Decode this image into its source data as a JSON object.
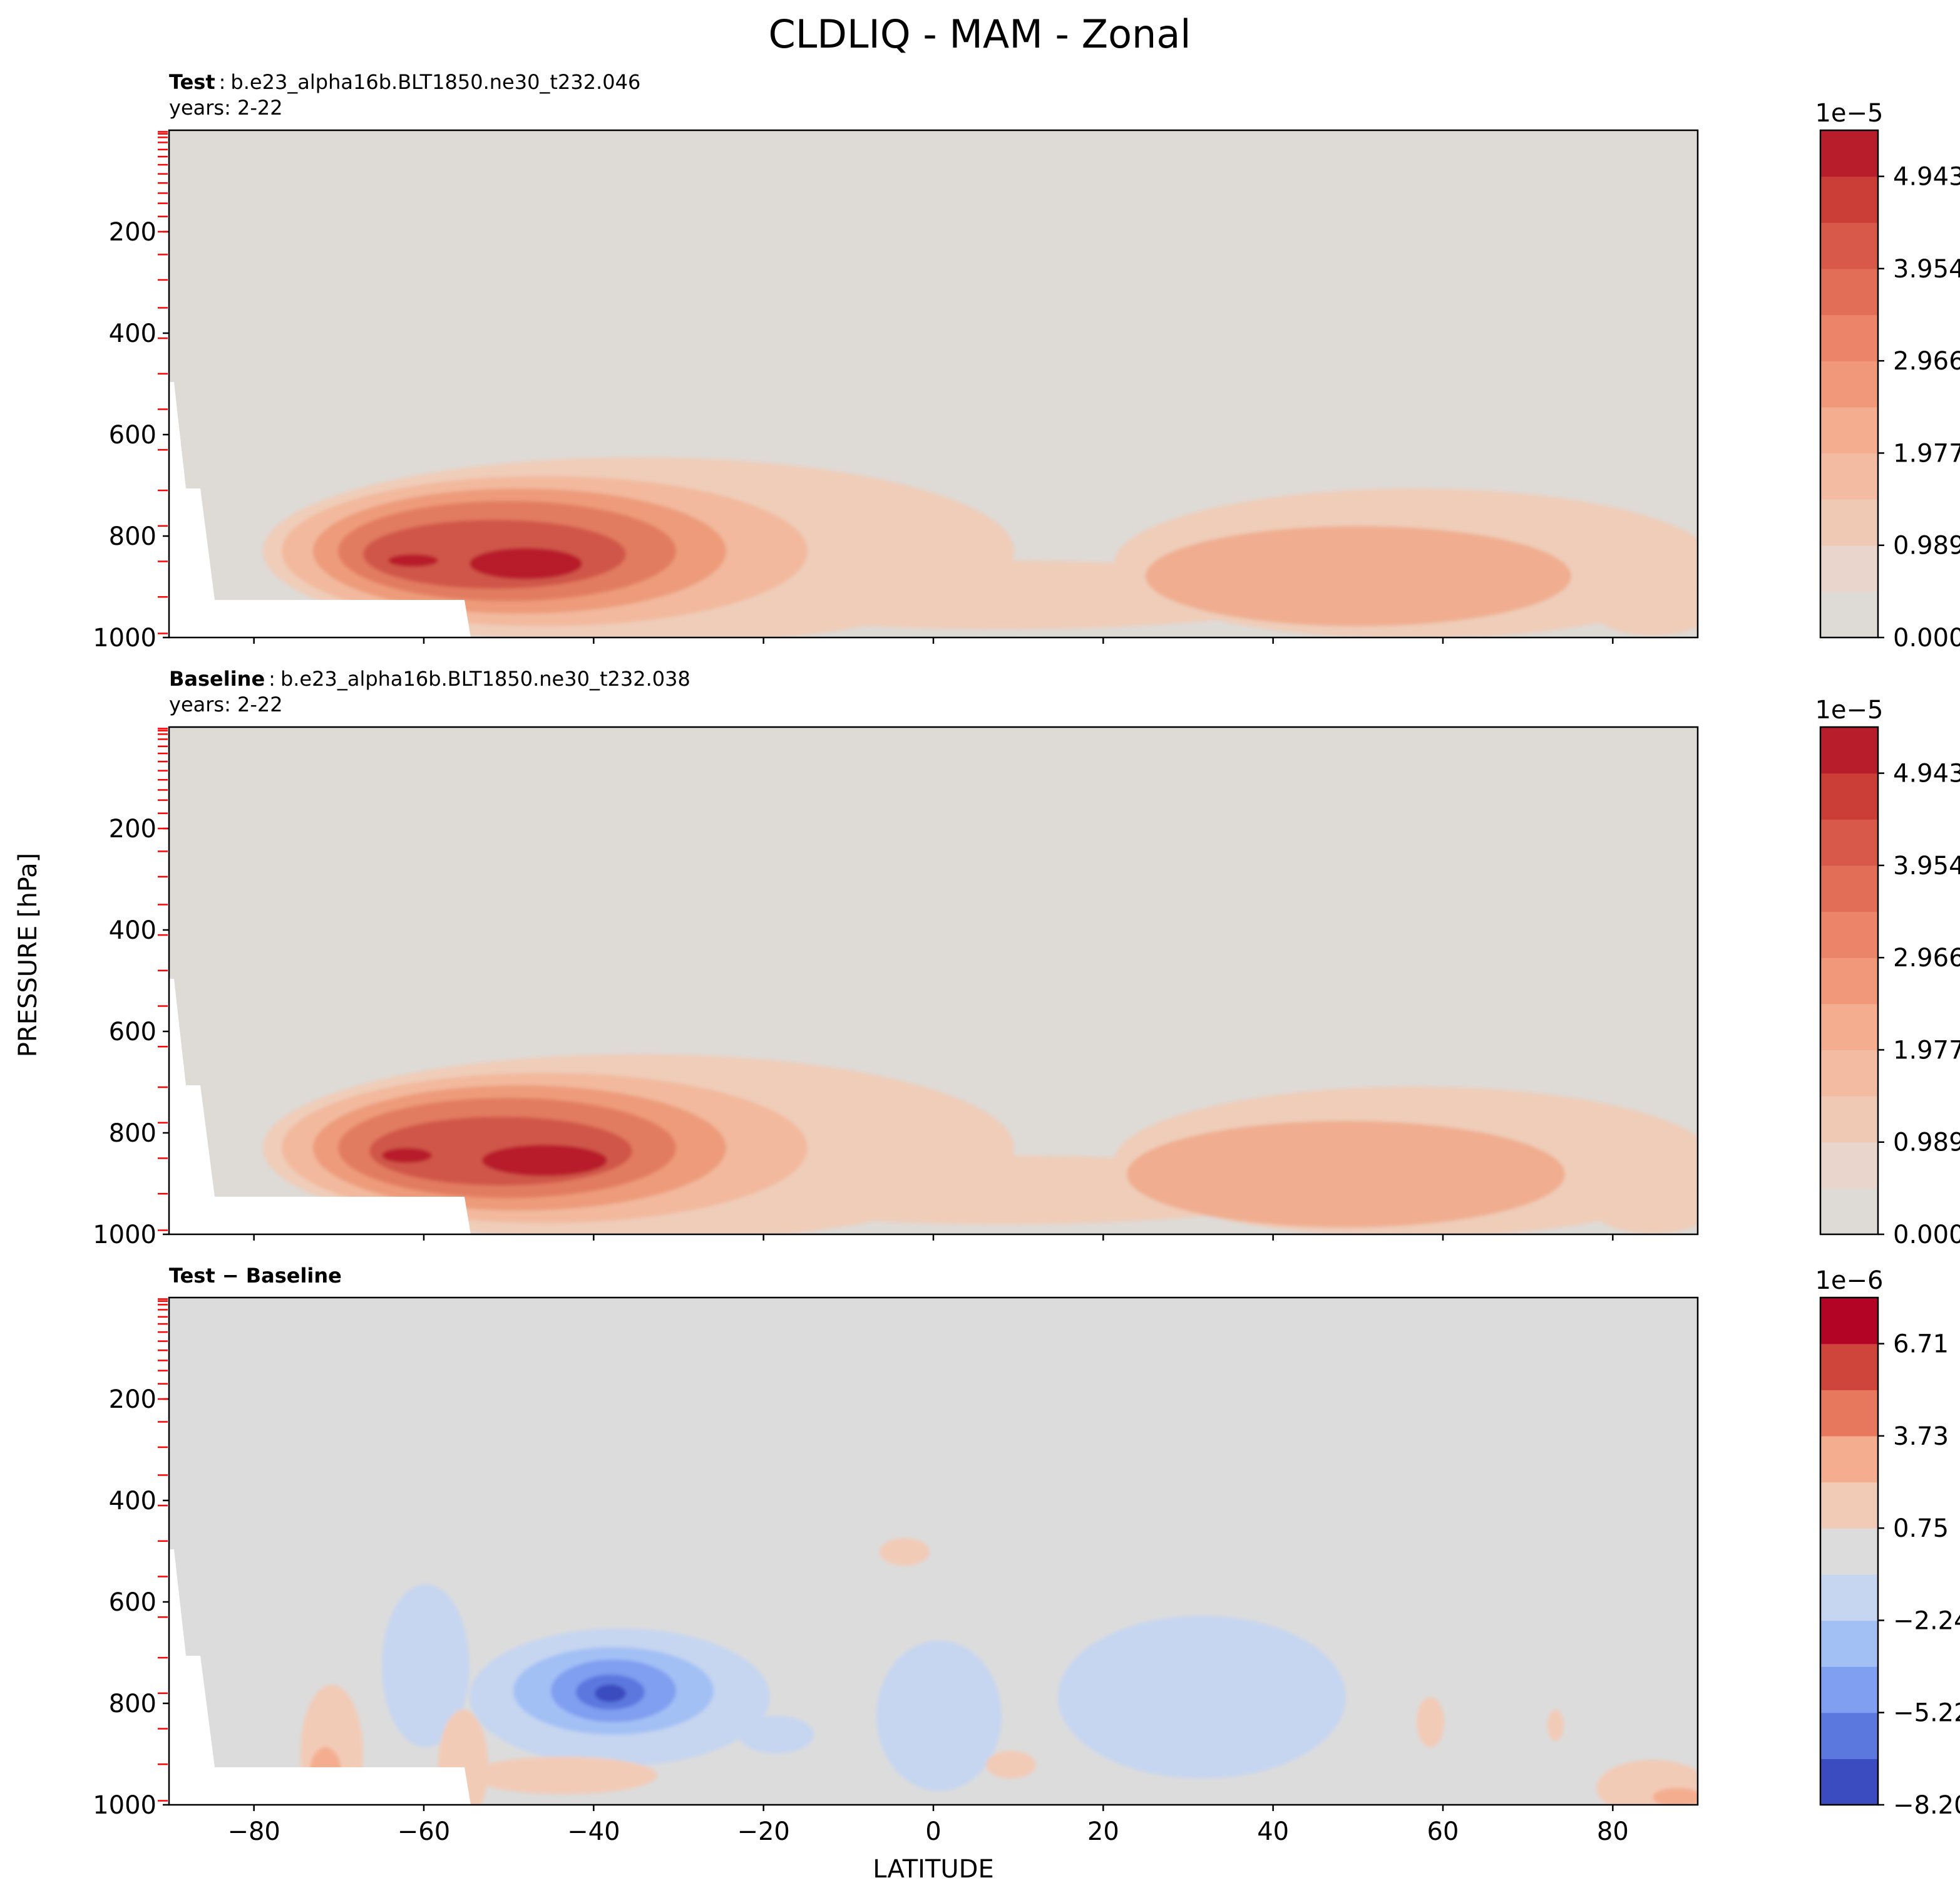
{
  "figure": {
    "title": "CLDLIQ - MAM - Zonal",
    "ylabel": "PRESSURE [hPa]",
    "xlabel": "LATITUDE"
  },
  "panels": [
    {
      "label_bold": "Test",
      "label_sep": ":",
      "label_case": "b.e23_alpha16b.BLT1850.ne30_t232.046",
      "years": "years: 2-22",
      "cb_exponent": "1e−5",
      "cb_ticks": [
        "4.943",
        "3.954",
        "2.966",
        "1.977",
        "0.989",
        "0.000"
      ]
    },
    {
      "label_bold": "Baseline",
      "label_sep": ":",
      "label_case": "b.e23_alpha16b.BLT1850.ne30_t232.038",
      "years": "years: 2-22",
      "cb_exponent": "1e−5",
      "cb_ticks": [
        "4.943",
        "3.954",
        "2.966",
        "1.977",
        "0.989",
        "0.000"
      ]
    },
    {
      "label_bold": "Test − Baseline",
      "label_sep": "",
      "label_case": "",
      "years": "",
      "cb_exponent": "1e−6",
      "cb_ticks": [
        "6.71",
        "3.73",
        "0.75",
        "−2.24",
        "−5.22",
        "−8.20"
      ]
    }
  ],
  "chart_data": [
    {
      "type": "heatmap",
      "title": "Test : b.e23_alpha16b.BLT1850.ne30_t232.046 years: 2-22",
      "xlabel": "LATITUDE",
      "ylabel": "PRESSURE [hPa]",
      "xlim": [
        -90,
        90
      ],
      "ylim": [
        1000,
        0
      ],
      "xticks": [
        -80,
        -60,
        -40,
        -20,
        0,
        20,
        40,
        60,
        80
      ],
      "yticks": [
        200,
        400,
        600,
        800,
        1000
      ],
      "colormap": "coolwarm",
      "colorbar_scale": "1e-5",
      "colorbar_levels": [
        0.0,
        0.989,
        1.977,
        2.966,
        3.954,
        4.943
      ],
      "features": [
        {
          "lat": -47,
          "p": 850,
          "value": 5.2,
          "unit": "1e-5"
        },
        {
          "lat": -60,
          "p": 850,
          "value": 4.5,
          "unit": "1e-5"
        },
        {
          "lat": 45,
          "p": 900,
          "value": 2.5,
          "unit": "1e-5"
        }
      ]
    },
    {
      "type": "heatmap",
      "title": "Baseline : b.e23_alpha16b.BLT1850.ne30_t232.038 years: 2-22",
      "xlabel": "LATITUDE",
      "ylabel": "PRESSURE [hPa]",
      "xlim": [
        -90,
        90
      ],
      "ylim": [
        1000,
        0
      ],
      "xticks": [
        -80,
        -60,
        -40,
        -20,
        0,
        20,
        40,
        60,
        80
      ],
      "yticks": [
        200,
        400,
        600,
        800,
        1000
      ],
      "colormap": "coolwarm",
      "colorbar_scale": "1e-5",
      "colorbar_levels": [
        0.0,
        0.989,
        1.977,
        2.966,
        3.954,
        4.943
      ],
      "features": [
        {
          "lat": -45,
          "p": 860,
          "value": 5.3,
          "unit": "1e-5"
        },
        {
          "lat": -63,
          "p": 850,
          "value": 4.8,
          "unit": "1e-5"
        },
        {
          "lat": 45,
          "p": 900,
          "value": 2.6,
          "unit": "1e-5"
        }
      ]
    },
    {
      "type": "heatmap",
      "title": "Test − Baseline",
      "xlabel": "LATITUDE",
      "ylabel": "PRESSURE [hPa]",
      "xlim": [
        -90,
        90
      ],
      "ylim": [
        1000,
        0
      ],
      "xticks": [
        -80,
        -60,
        -40,
        -20,
        0,
        20,
        40,
        60,
        80
      ],
      "yticks": [
        200,
        400,
        600,
        800,
        1000
      ],
      "colormap": "coolwarm",
      "colorbar_scale": "1e-6",
      "colorbar_levels": [
        -8.2,
        -5.22,
        -2.24,
        0.75,
        3.73,
        6.71
      ],
      "features": [
        {
          "lat": -38,
          "p": 840,
          "value": -8.0,
          "unit": "1e-6"
        },
        {
          "lat": -60,
          "p": 720,
          "value": -1.5,
          "unit": "1e-6"
        },
        {
          "lat": 0,
          "p": 820,
          "value": -1.5,
          "unit": "1e-6"
        },
        {
          "lat": 30,
          "p": 820,
          "value": -1.5,
          "unit": "1e-6"
        },
        {
          "lat": -72,
          "p": 900,
          "value": 3.0,
          "unit": "1e-6"
        },
        {
          "lat": -5,
          "p": 500,
          "value": 1.0,
          "unit": "1e-6"
        },
        {
          "lat": 85,
          "p": 980,
          "value": 2.0,
          "unit": "1e-6"
        }
      ]
    }
  ]
}
